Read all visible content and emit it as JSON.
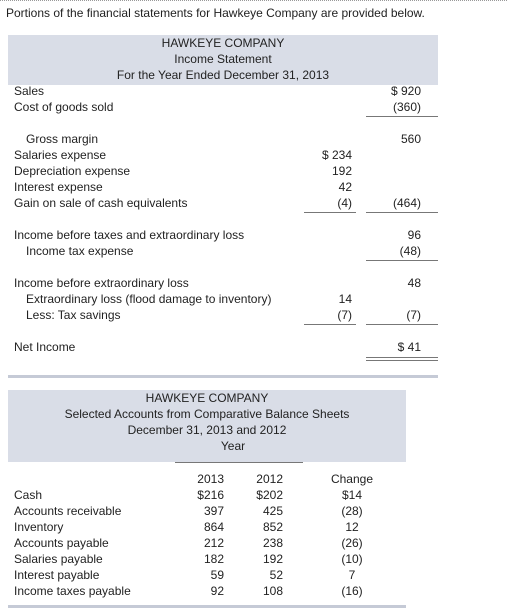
{
  "intro": "Portions of the financial statements for Hawkeye Company are provided below.",
  "income_statement": {
    "title": "HAWKEYE COMPANY",
    "subtitle": "Income Statement",
    "period": "For the Year Ended December 31, 2013",
    "rows": [
      {
        "label": "Sales",
        "total": "$ 920"
      },
      {
        "label": "Cost of goods sold",
        "total": "(360)"
      },
      {
        "label": "Gross margin",
        "total": "560"
      },
      {
        "label": "Salaries expense",
        "detail": "$ 234"
      },
      {
        "label": "Depreciation expense",
        "detail": "192"
      },
      {
        "label": "Interest expense",
        "detail": "42"
      },
      {
        "label": "Gain on sale of cash equivalents",
        "detail": "(4)",
        "total": "(464)"
      },
      {
        "label": "Income before taxes and extraordinary loss",
        "total": "96"
      },
      {
        "label": "Income tax expense",
        "total": "(48)"
      },
      {
        "label": "Income before extraordinary loss",
        "total": "48"
      },
      {
        "label": "Extraordinary loss (flood damage to inventory)",
        "detail": "14"
      },
      {
        "label": "Less: Tax savings",
        "detail": "(7)",
        "total": "(7)"
      },
      {
        "label": "Net Income",
        "total": "$   41"
      }
    ]
  },
  "balance_sheet": {
    "title": "HAWKEYE COMPANY",
    "subtitle": "Selected Accounts from Comparative Balance Sheets",
    "dates": "December 31, 2013 and 2012",
    "column_group": "Year",
    "columns": [
      "2013",
      "2012",
      "Change"
    ],
    "rows": [
      {
        "label": "Cash",
        "values": [
          "$216",
          "$202",
          "$14"
        ]
      },
      {
        "label": "Accounts receivable",
        "values": [
          "397",
          "425",
          "(28)"
        ]
      },
      {
        "label": "Inventory",
        "values": [
          "864",
          "852",
          "12"
        ]
      },
      {
        "label": "Accounts payable",
        "values": [
          "212",
          "238",
          "(26)"
        ]
      },
      {
        "label": "Salaries payable",
        "values": [
          "182",
          "192",
          "(10)"
        ]
      },
      {
        "label": "Interest payable",
        "values": [
          "59",
          "52",
          "7"
        ]
      },
      {
        "label": "Income taxes payable",
        "values": [
          "92",
          "108",
          "(16)"
        ]
      }
    ]
  }
}
